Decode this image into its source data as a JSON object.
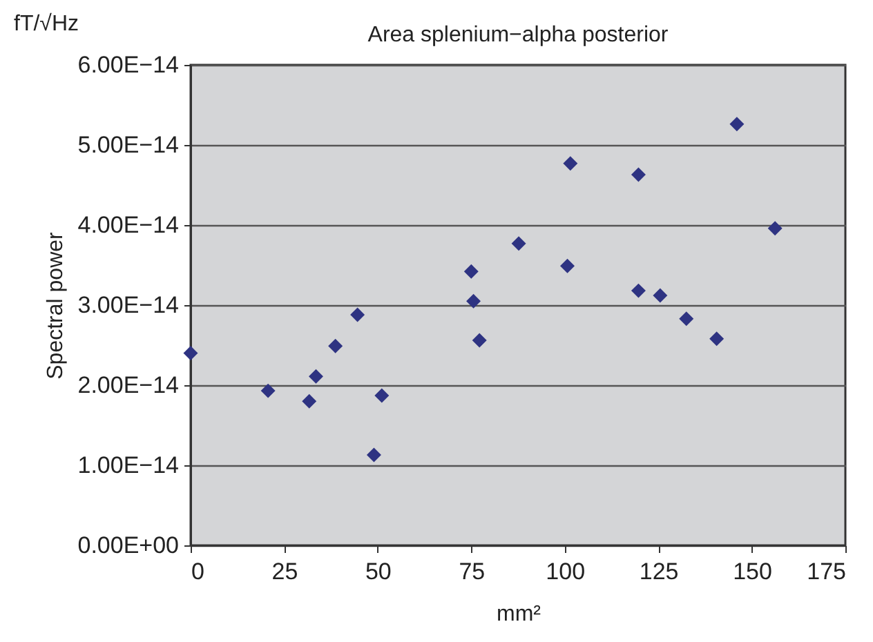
{
  "chart_data": {
    "type": "scatter",
    "title": "Area splenium−alpha posterior",
    "xlabel": "mm²",
    "ylabel": "Spectral power",
    "annotations": [
      "fT/√Hz"
    ],
    "x": [
      0,
      20.7,
      31.7,
      33.5,
      38.7,
      44.6,
      49.0,
      51.1,
      75.0,
      75.6,
      77.2,
      87.7,
      101.5,
      100.7,
      119.7,
      119.7,
      125.5,
      132.5,
      140.6,
      146.0,
      156.2
    ],
    "series": [
      {
        "color": "#2e3382",
        "values": [
          2.4e-14,
          1.93e-14,
          1.8e-14,
          2.11e-14,
          2.49e-14,
          2.88e-14,
          1.13e-14,
          1.87e-14,
          3.42e-14,
          3.05e-14,
          2.56e-14,
          3.77e-14,
          4.77e-14,
          3.49e-14,
          4.63e-14,
          3.18e-14,
          3.12e-14,
          2.83e-14,
          2.58e-14,
          5.26e-14,
          3.96e-14
        ]
      }
    ],
    "xlim": [
      0,
      175
    ],
    "xticks": [
      0,
      25,
      50,
      75,
      100,
      125,
      150,
      175
    ],
    "ylim": [
      0,
      6e-14
    ],
    "yticks": [
      {
        "value": 0,
        "label": "0.00E+00"
      },
      {
        "value": 1e-14,
        "label": "1.00E−14"
      },
      {
        "value": 2e-14,
        "label": "2.00E−14"
      },
      {
        "value": 3e-14,
        "label": "3.00E−14"
      },
      {
        "value": 4e-14,
        "label": "4.00E−14"
      },
      {
        "value": 5e-14,
        "label": "5.00E−14"
      },
      {
        "value": 6e-14,
        "label": "6.00E−14"
      }
    ],
    "grid": "y",
    "marker": "diamond",
    "legend": false
  }
}
